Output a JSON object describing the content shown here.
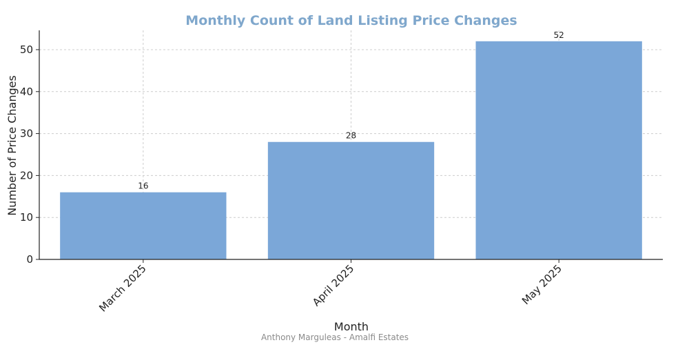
{
  "chart_data": {
    "type": "bar",
    "title": "Monthly Count of Land Listing Price Changes",
    "xlabel": "Month",
    "ylabel": "Number of Price Changes",
    "categories": [
      "March 2025",
      "April 2025",
      "May 2025"
    ],
    "values": [
      16,
      28,
      52
    ],
    "ylim": [
      0,
      54.6
    ],
    "yticks": [
      0,
      10,
      20,
      30,
      40,
      50
    ],
    "grid": true,
    "bar_color": "#7ba7d8",
    "title_color": "#7fa7cc",
    "footer": "Anthony Marguleas - Amalfi Estates"
  }
}
